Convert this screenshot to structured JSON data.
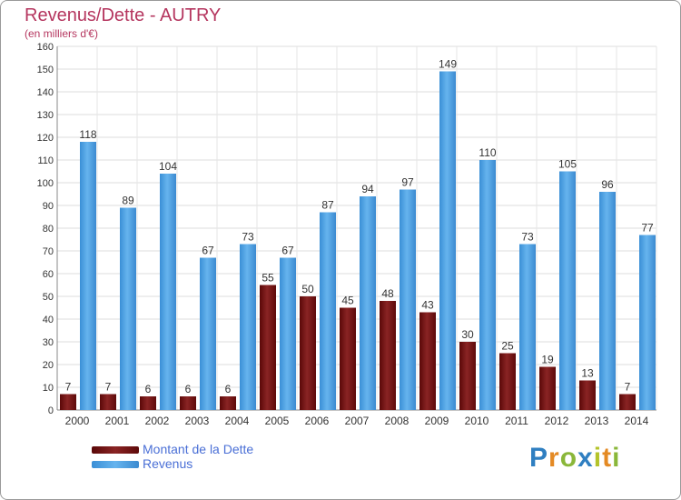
{
  "logo": {
    "text": "Proxiti",
    "colors": [
      "#2f7fc1",
      "#e48a24",
      "#8ab73a",
      "#2f7fc1",
      "#b4c32a",
      "#e48a24",
      "#8ab73a"
    ]
  },
  "colors": {
    "debt": "#7a1212",
    "revenue": "#4a9ee0",
    "title": "#b5365f",
    "legend_text": "#4a6fd6"
  },
  "chart_data": {
    "type": "bar",
    "title": "Revenus/Dette - AUTRY",
    "subtitle": "(en milliers d'€)",
    "categories": [
      "2000",
      "2001",
      "2002",
      "2003",
      "2004",
      "2005",
      "2006",
      "2007",
      "2008",
      "2009",
      "2010",
      "2011",
      "2012",
      "2013",
      "2014"
    ],
    "series": [
      {
        "name": "Montant de la Dette",
        "values": [
          7,
          7,
          6,
          6,
          6,
          55,
          50,
          45,
          48,
          43,
          30,
          25,
          19,
          13,
          7
        ]
      },
      {
        "name": "Revenus",
        "values": [
          118,
          89,
          104,
          67,
          73,
          67,
          87,
          94,
          97,
          149,
          110,
          73,
          105,
          96,
          77
        ]
      }
    ],
    "ylim": [
      0,
      160
    ],
    "yticks": [
      0,
      10,
      20,
      30,
      40,
      50,
      60,
      70,
      80,
      90,
      100,
      110,
      120,
      130,
      140,
      150,
      160
    ],
    "grid": true,
    "legend_position": "bottom-left"
  }
}
